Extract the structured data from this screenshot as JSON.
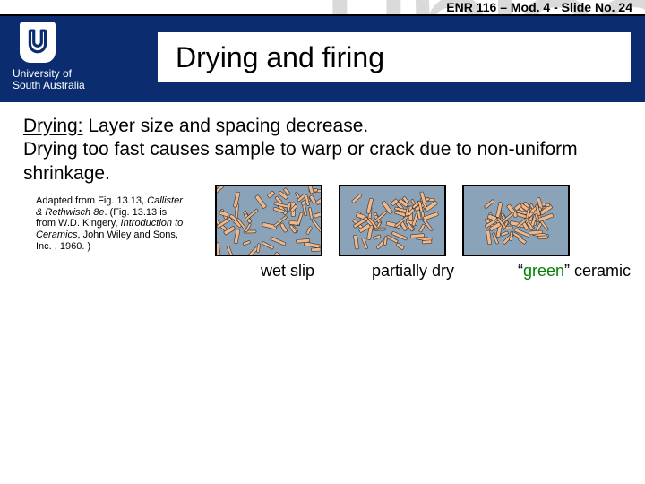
{
  "header": {
    "slide_no": "ENR 116 – Mod. 4 - Slide No. 24",
    "band_color": "#0b2d6f",
    "logo": {
      "uni1": "University of",
      "uni2": "South Australia"
    },
    "title": "Drying and firing"
  },
  "body": {
    "line1_lead": "Drying:",
    "line1_rest": " Layer size and spacing decrease.",
    "line2": "Drying too fast causes sample to warp or crack due to non-uniform shrinkage."
  },
  "citation": {
    "part1": "Adapted from Fig. 13.13, ",
    "ital1": "Callister & Rethwisch 8e",
    "part2": ". (Fig. 13.13 is from W.D. Kingery, ",
    "ital2": "Introduction to Ceramics",
    "part3": ", John Wiley and Sons, Inc. , 1960. )"
  },
  "figure": {
    "border_color": "#000000",
    "water_color": "#8aa3b8",
    "particle_fill": "#f0b78a",
    "particle_stroke": "#333333",
    "panels": [
      {
        "key": "wet",
        "spread": 1.0,
        "label": "wet slip"
      },
      {
        "key": "pdry",
        "spread": 0.72,
        "label": "partially dry"
      },
      {
        "key": "green",
        "spread": 0.55,
        "label_prefix": "“",
        "label_word": "green",
        "label_suffix": "” ceramic"
      }
    ],
    "label_fontsize": 18,
    "green_color": "#008000"
  }
}
